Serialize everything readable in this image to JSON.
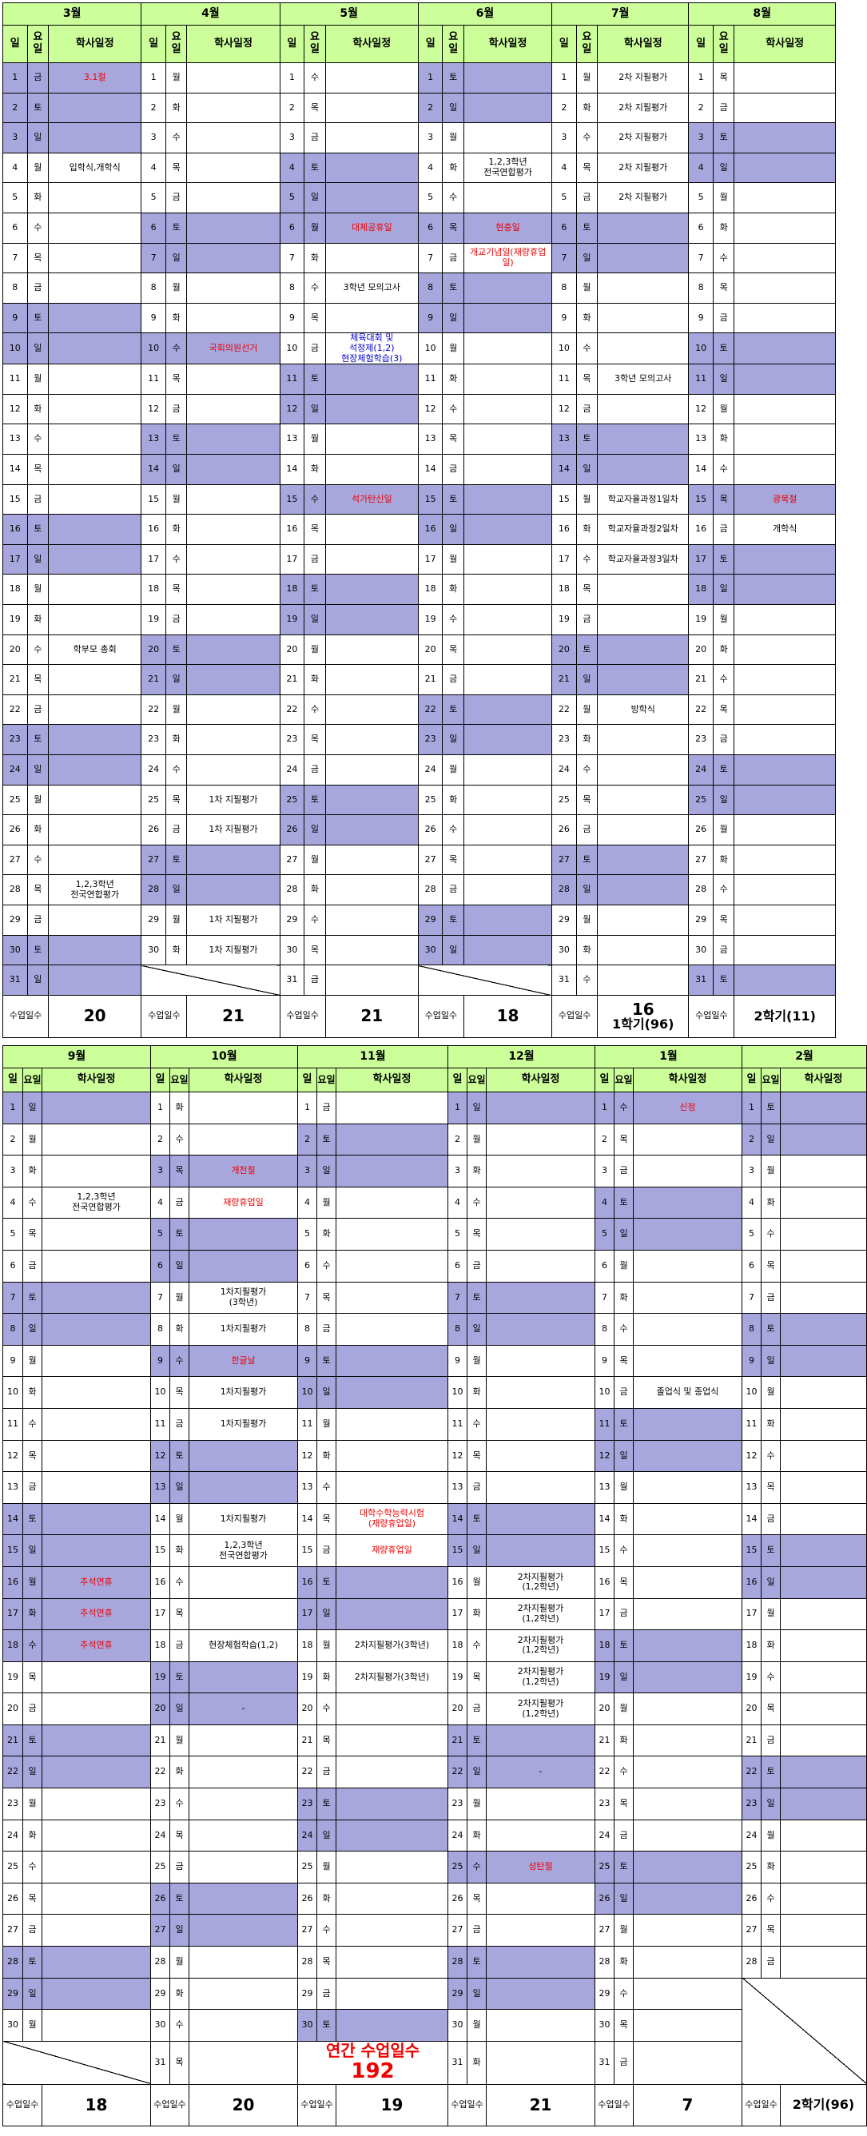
{
  "labels": {
    "day": "일",
    "dow_h1": "요",
    "dow_h2": "일",
    "dow_b": "요일",
    "event": "학사일정",
    "days_label": "수업일수"
  },
  "term1": {
    "months": [
      {
        "name": "3월",
        "days_count": "20",
        "events": {
          "1": "3.1절",
          "4": "입학식,개학식",
          "20": "학부모 총회",
          "28": "1,2,3학년\n전국연합평가"
        }
      },
      {
        "name": "4월",
        "days_count": "21",
        "events": {
          "10": "국회의원선거",
          "25": "1차 지필평가",
          "26": "1차 지필평가",
          "29": "1차 지필평가",
          "30": "1차 지필평가"
        }
      },
      {
        "name": "5월",
        "days_count": "21",
        "events": {
          "6": "대체공휴일",
          "8": "3학년 모의고사",
          "10": "체육대회 및\n석정제(1,2)\n현장체험학습(3)",
          "15": "석가탄신일"
        }
      },
      {
        "name": "6월",
        "days_count": "18",
        "events": {
          "4": "1,2,3학년\n전국연합평가",
          "6": "현충일",
          "7": "개교기념일(재량휴업일)"
        }
      },
      {
        "name": "7월",
        "days_count": "16",
        "semester": "1학기(96)",
        "events": {
          "1": "2차 지필평가",
          "2": "2차 지필평가",
          "3": "2차 지필평가",
          "4": "2차 지필평가",
          "5": "2차 지필평가",
          "11": "3학년 모의고사",
          "15": "학교자율과정1일차",
          "16": "학교자율과정2일차",
          "17": "학교자율과정3일차",
          "22": "방학식"
        }
      },
      {
        "name": "8월",
        "days_count": "",
        "semester": "2학기(11)",
        "events": {
          "15": "광복절",
          "16": "개학식"
        }
      }
    ]
  },
  "term2": {
    "months": [
      {
        "name": "9월",
        "days_count": "18",
        "events": {
          "4": "1,2,3학년\n전국연합평가",
          "16": "추석연휴",
          "17": "추석연휴",
          "18": "추석연휴"
        }
      },
      {
        "name": "10월",
        "days_count": "20",
        "events": {
          "3": "개천절",
          "4": "재량휴업일",
          "7": "1차지필평가\n(3학년)",
          "8": "1차지필평가",
          "9": "한글날",
          "10": "1차지필평가",
          "11": "1차지필평가",
          "14": "1차지필평가",
          "15": "1,2,3학년\n전국연합평가",
          "18": "현장체험학습(1,2)",
          "20": "-"
        }
      },
      {
        "name": "11월",
        "days_count": "19",
        "events": {
          "14": "대학수학능력시험\n(재량휴업일)",
          "15": "재량휴업일",
          "18": "2차지필평가(3학년)",
          "19": "2차지필평가(3학년)"
        }
      },
      {
        "name": "12월",
        "days_count": "21",
        "events": {
          "16": "2차지필평가\n(1,2학년)",
          "17": "2차지필평가\n(1,2학년)",
          "18": "2차지필평가\n(1,2학년)",
          "19": "2차지필평가\n(1,2학년)",
          "20": "2차지필평가\n(1,2학년)",
          "22": "-",
          "25": "성탄절"
        }
      },
      {
        "name": "1월",
        "days_count": "7",
        "events": {
          "1": "신정",
          "10": "졸업식 및 종업식"
        }
      },
      {
        "name": "2월",
        "days_count": "",
        "semester": "2학기(96)",
        "annual_l1": "연간 수업일수",
        "annual_l2": "192",
        "events": {}
      }
    ]
  },
  "colors": {
    "header_bg": "#ccff99",
    "holiday_bg": "#a7a7dd",
    "holiday_text": "#ee0000",
    "special_text": "#0000cc"
  }
}
